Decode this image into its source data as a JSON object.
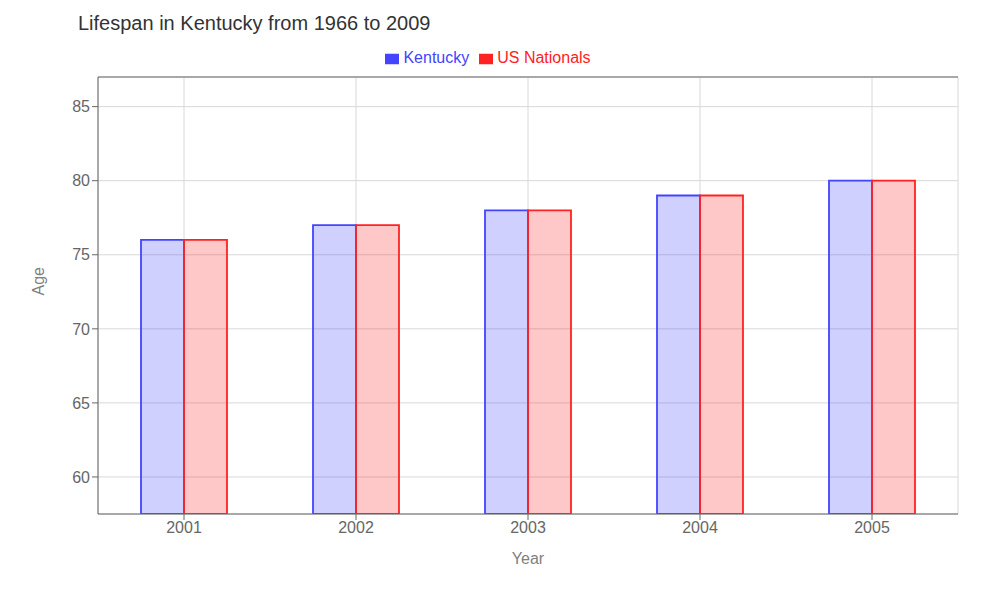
{
  "chart_data": {
    "type": "bar",
    "title": "Lifespan in Kentucky from 1966 to 2009",
    "xlabel": "Year",
    "ylabel": "Age",
    "categories": [
      "2001",
      "2002",
      "2003",
      "2004",
      "2005"
    ],
    "series": [
      {
        "name": "Kentucky",
        "color": "#4444ff",
        "values": [
          76,
          77,
          78,
          79,
          80
        ]
      },
      {
        "name": "US Nationals",
        "color": "#ff2222",
        "values": [
          76,
          77,
          78,
          79,
          80
        ]
      }
    ],
    "ylim": [
      57.5,
      87
    ],
    "yticks": [
      60,
      65,
      70,
      75,
      80,
      85
    ],
    "grid": true,
    "legend": "top"
  }
}
